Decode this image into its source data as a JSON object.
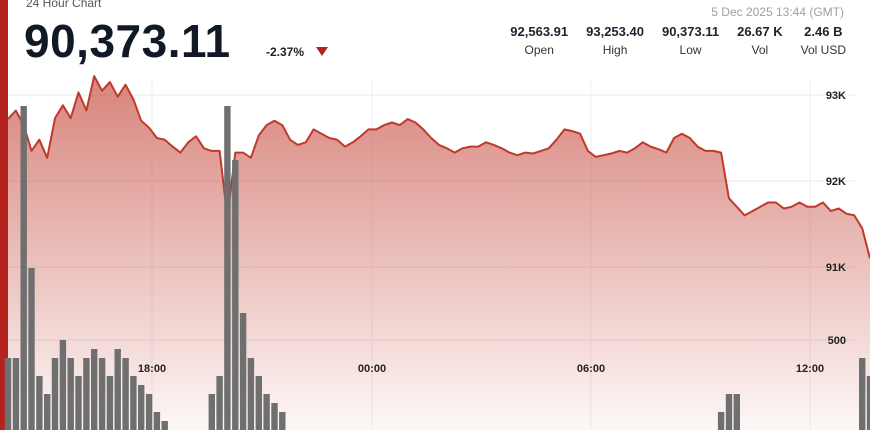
{
  "header": {
    "subtitle": "24 Hour Chart",
    "price": "90,373.11",
    "change": "-2.37%",
    "timestamp": "5 Dec 2025 13:44 (GMT)"
  },
  "stats": [
    {
      "value": "92,563.91",
      "label": "Open"
    },
    {
      "value": "93,253.40",
      "label": "High"
    },
    {
      "value": "90,373.11",
      "label": "Low"
    },
    {
      "value": "26.67 K",
      "label": "Vol"
    },
    {
      "value": "2.46 B",
      "label": "Vol USD"
    }
  ],
  "colors": {
    "accent": "#b3221c",
    "line": "#c0392b",
    "volume": "#6f6f6f"
  },
  "chart_data": {
    "type": "area",
    "x_ticks": [
      "18:00",
      "00:00",
      "06:00",
      "12:00"
    ],
    "y_ticks": [
      "93K",
      "92K",
      "91K",
      "500"
    ],
    "grid": true,
    "price_series": {
      "name": "",
      "values": [
        92720,
        92820,
        92650,
        92350,
        92480,
        92270,
        92730,
        92880,
        92730,
        93030,
        92820,
        93220,
        93050,
        93150,
        92980,
        93120,
        92950,
        92700,
        92620,
        92500,
        92480,
        92400,
        92330,
        92450,
        92520,
        92380,
        92350,
        92350,
        91580,
        92330,
        92330,
        92270,
        92530,
        92650,
        92700,
        92650,
        92480,
        92420,
        92450,
        92600,
        92550,
        92500,
        92480,
        92400,
        92450,
        92520,
        92600,
        92600,
        92650,
        92680,
        92650,
        92720,
        92680,
        92600,
        92500,
        92420,
        92380,
        92330,
        92380,
        92400,
        92400,
        92450,
        92420,
        92380,
        92330,
        92300,
        92330,
        92320,
        92350,
        92380,
        92480,
        92600,
        92580,
        92550,
        92350,
        92280,
        92300,
        92320,
        92350,
        92330,
        92380,
        92450,
        92400,
        92370,
        92330,
        92500,
        92550,
        92500,
        92400,
        92350,
        92350,
        92330,
        91800,
        91700,
        91600,
        91650,
        91700,
        91750,
        91750,
        91680,
        91700,
        91750,
        91700,
        91700,
        91750,
        91650,
        91680,
        91620,
        91600,
        91450,
        91100
      ]
    },
    "volume_series": {
      "name": "",
      "values": [
        400,
        400,
        1800,
        900,
        300,
        200,
        400,
        500,
        400,
        300,
        400,
        450,
        400,
        300,
        450,
        400,
        300,
        250,
        200,
        100,
        50,
        0,
        0,
        0,
        0,
        0,
        200,
        300,
        1800,
        1500,
        650,
        400,
        300,
        200,
        150,
        100,
        0,
        0,
        0,
        0,
        0,
        0,
        0,
        0,
        0,
        0,
        0,
        0,
        0,
        0,
        0,
        0,
        0,
        0,
        0,
        0,
        0,
        0,
        0,
        0,
        0,
        0,
        0,
        0,
        0,
        0,
        0,
        0,
        0,
        0,
        0,
        0,
        0,
        0,
        0,
        0,
        0,
        0,
        0,
        0,
        0,
        0,
        0,
        0,
        0,
        0,
        0,
        0,
        0,
        0,
        0,
        100,
        200,
        200,
        0,
        0,
        0,
        0,
        0,
        0,
        0,
        0,
        0,
        0,
        0,
        0,
        0,
        0,
        0,
        400,
        300
      ]
    }
  }
}
